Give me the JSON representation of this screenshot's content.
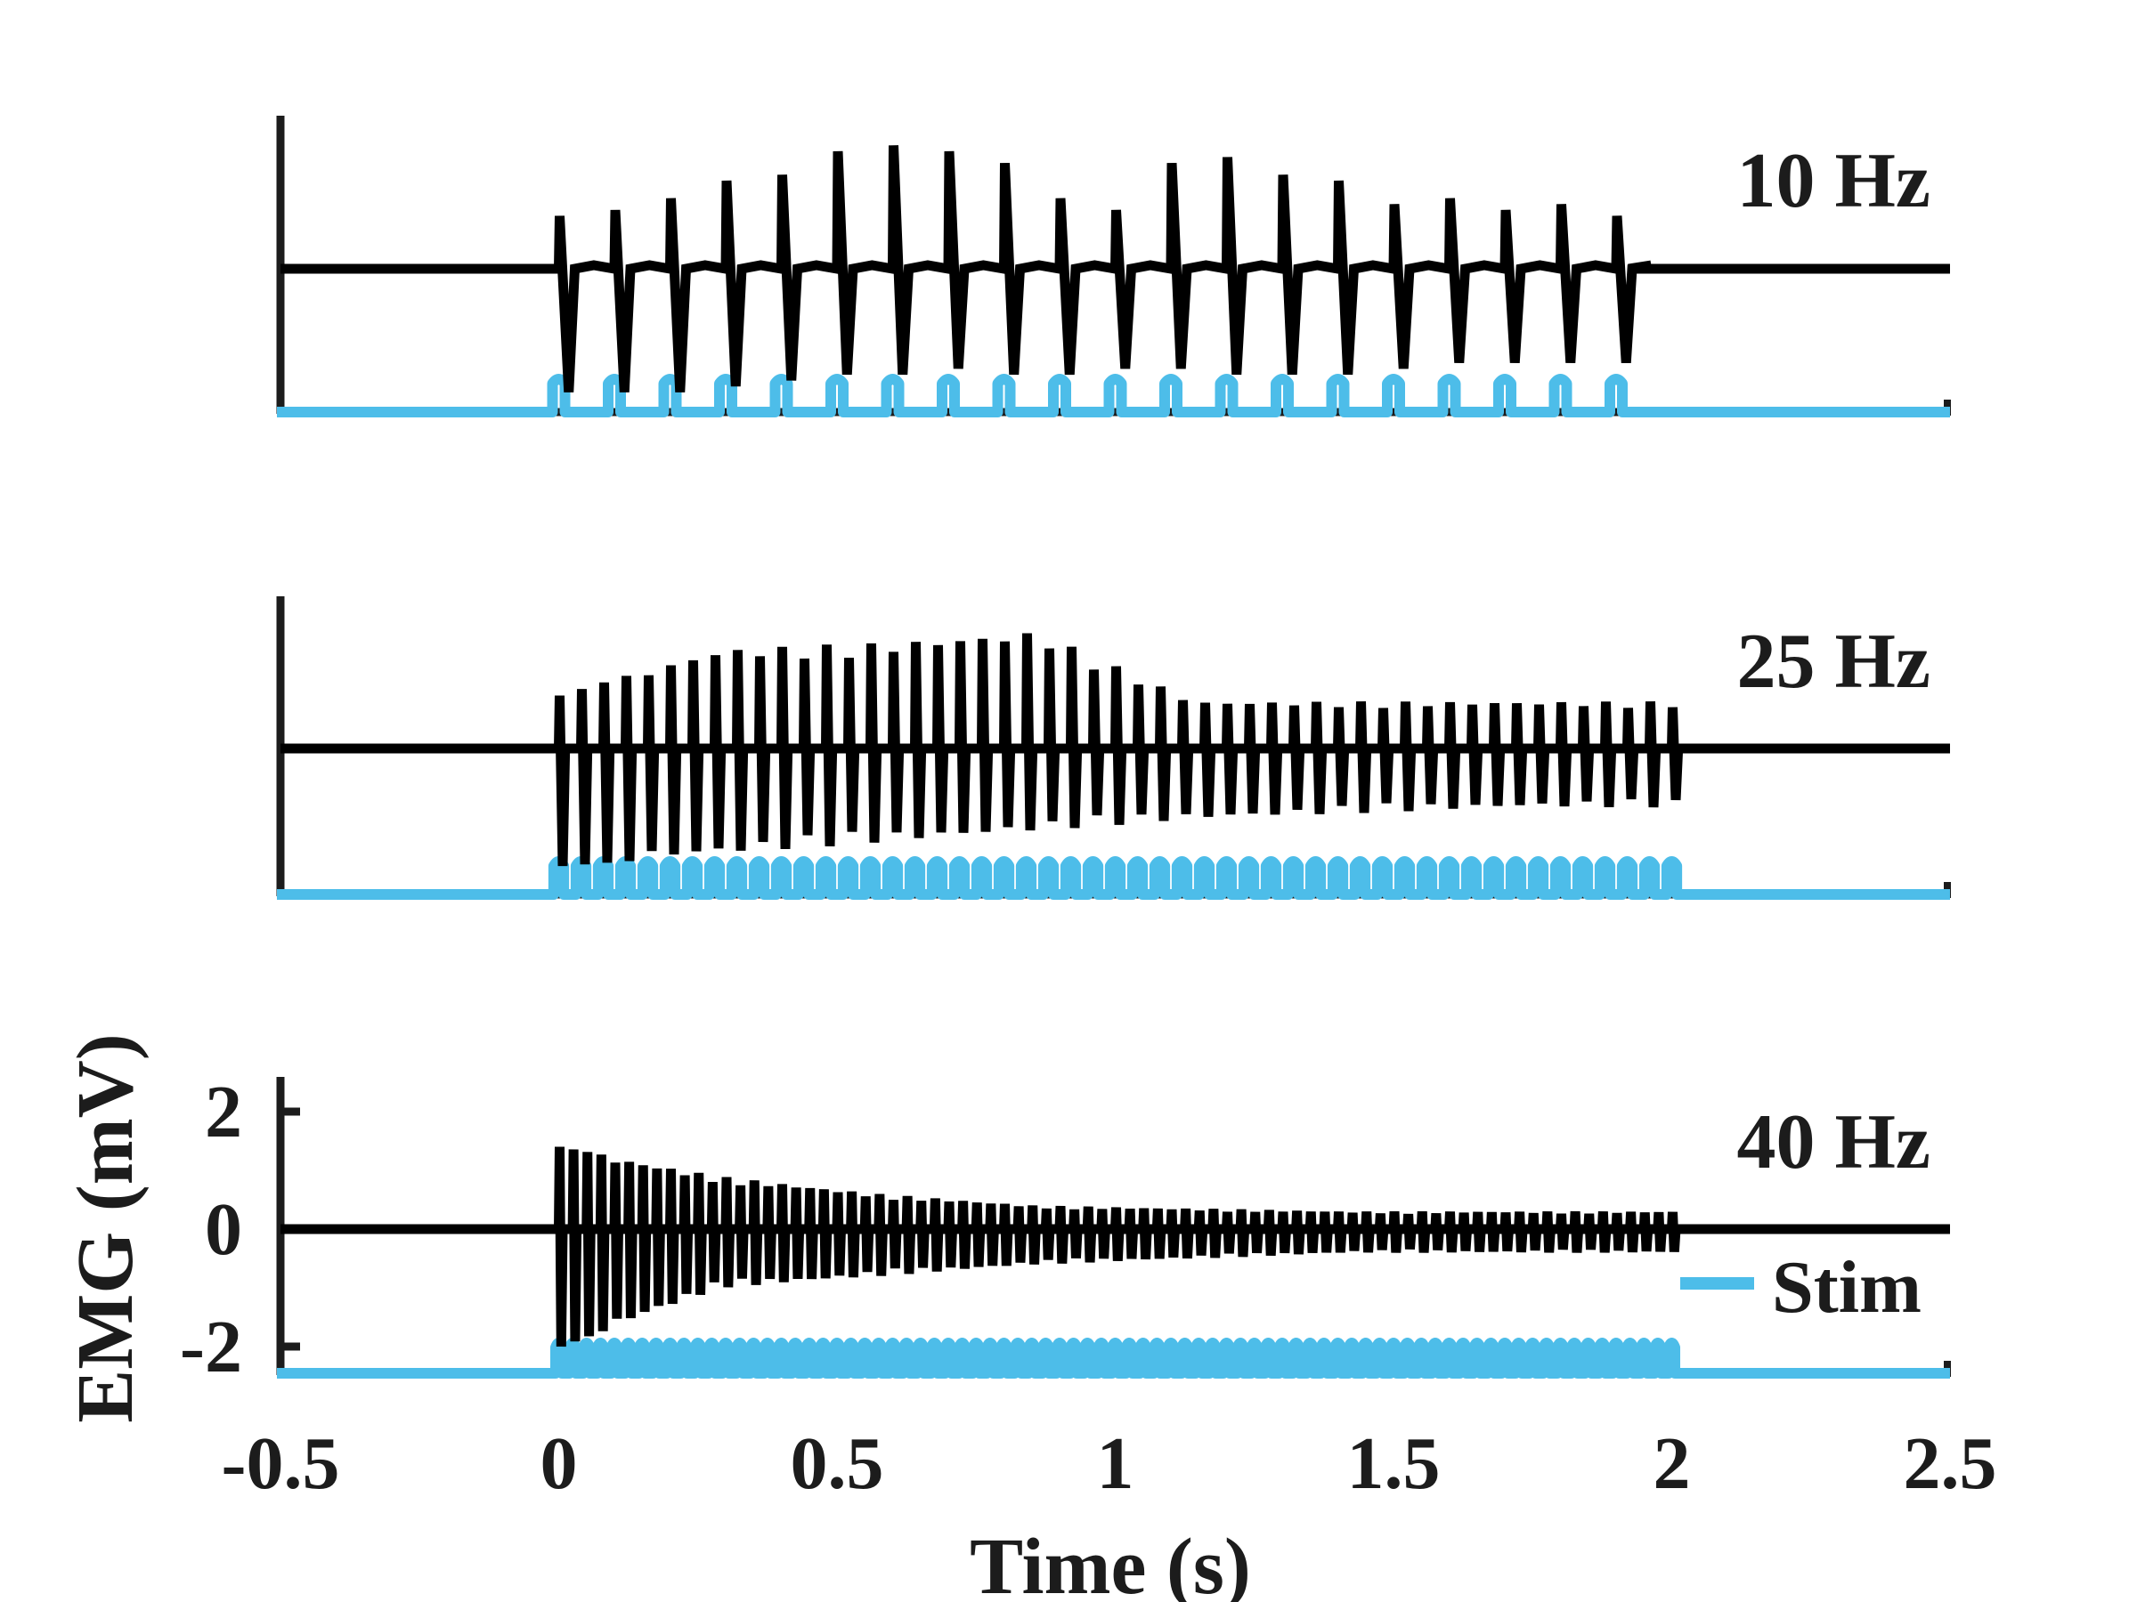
{
  "chart_data": {
    "type": "line",
    "xlabel": "Time (s)",
    "ylabel": "EMG (mV)",
    "xlim": [
      -0.5,
      2.5
    ],
    "xticks": [
      "-0.5",
      "0",
      "0.5",
      "1",
      "1.5",
      "2",
      "2.5"
    ],
    "xtick_values": [
      -0.5,
      0,
      0.5,
      1,
      1.5,
      2,
      2.5
    ],
    "legend": {
      "entries": [
        "Stim"
      ],
      "placement": "bottom-right of bottom panel"
    },
    "colors": {
      "emg": "#000000",
      "stim": "#4dbde9",
      "axis": "#1c1c1c"
    },
    "panels": [
      {
        "label": "10 Hz",
        "frequency_hz": 10,
        "stim_start_s": 0,
        "stim_end_s": 1.9,
        "ylim": [
          -2.6,
          2.6
        ],
        "show_yticks": false,
        "emg_peak_positive_mV": [
          0.9,
          1.0,
          1.2,
          1.5,
          1.6,
          2.0,
          2.1,
          2.0,
          1.8,
          1.2,
          1.0,
          1.8,
          1.9,
          1.6,
          1.5,
          1.1,
          1.2,
          1.0,
          1.1,
          0.9
        ],
        "emg_peak_negative_mV": [
          -2.1,
          -2.1,
          -2.1,
          -2.0,
          -1.9,
          -1.8,
          -1.8,
          -1.7,
          -1.8,
          -1.8,
          -1.7,
          -1.7,
          -1.8,
          -1.8,
          -1.8,
          -1.7,
          -1.6,
          -1.6,
          -1.6,
          -1.6
        ]
      },
      {
        "label": "25 Hz",
        "frequency_hz": 25,
        "stim_start_s": 0,
        "stim_end_s": 1.98,
        "ylim": [
          -2.6,
          2.6
        ],
        "show_yticks": false,
        "emg_envelope_positive_mV": [
          0.9,
          1.7,
          1.8,
          2.0,
          0.8,
          0.8,
          0.8,
          0.8
        ],
        "emg_envelope_negative_mV": [
          -2.0,
          -1.8,
          -1.6,
          -1.4,
          -1.2,
          -1.1,
          -1.0,
          -1.0
        ]
      },
      {
        "label": "40 Hz",
        "frequency_hz": 40,
        "stim_start_s": 0,
        "stim_end_s": 2.0,
        "ylim": [
          -2.6,
          2.6
        ],
        "show_yticks": true,
        "yticks": [
          "2",
          "0",
          "-2"
        ],
        "ytick_values": [
          2,
          0,
          -2
        ],
        "emg_envelope_positive_mV": [
          1.4,
          0.9,
          0.6,
          0.4,
          0.35,
          0.3,
          0.3,
          0.3
        ],
        "emg_envelope_negative_mV": [
          -2.0,
          -1.0,
          -0.8,
          -0.6,
          -0.5,
          -0.4,
          -0.4,
          -0.4
        ]
      }
    ]
  }
}
